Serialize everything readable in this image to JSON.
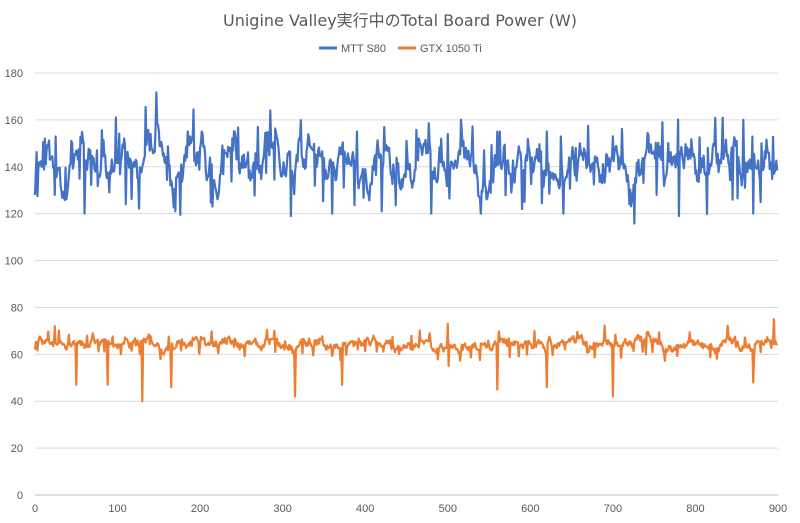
{
  "chart_data": {
    "type": "line",
    "title": "Unigine Valley実行中のTotal Board Power (W)",
    "xlabel": "",
    "ylabel": "",
    "xlim": [
      0,
      900
    ],
    "ylim": [
      0,
      180
    ],
    "x_ticks": [
      "0",
      "100",
      "200",
      "300",
      "400",
      "500",
      "600",
      "700",
      "800",
      "900"
    ],
    "y_ticks": [
      "0",
      "20",
      "40",
      "60",
      "80",
      "100",
      "120",
      "140",
      "160",
      "180"
    ],
    "grid": true,
    "legend_position": "top",
    "x_step": 1,
    "series": [
      {
        "name": "MTT S80",
        "color": "#4472c4",
        "generation": {
          "count": 900,
          "base": 141,
          "amplitude": 8,
          "noise": 6,
          "seed": 11
        },
        "anchors": [
          [
            0,
            128
          ],
          [
            12,
            152
          ],
          [
            24,
            128
          ],
          [
            45,
            150
          ],
          [
            60,
            120
          ],
          [
            75,
            147
          ],
          [
            98,
            161
          ],
          [
            110,
            124
          ],
          [
            140,
            154
          ],
          [
            170,
            121
          ],
          [
            190,
            152
          ],
          [
            215,
            123
          ],
          [
            240,
            147
          ],
          [
            270,
            157
          ],
          [
            285,
            164
          ],
          [
            310,
            119
          ],
          [
            330,
            149
          ],
          [
            360,
            120
          ],
          [
            390,
            155
          ],
          [
            420,
            121
          ],
          [
            450,
            151
          ],
          [
            480,
            120
          ],
          [
            500,
            154
          ],
          [
            540,
            120
          ],
          [
            560,
            155
          ],
          [
            590,
            122
          ],
          [
            620,
            155
          ],
          [
            640,
            120
          ],
          [
            660,
            150
          ],
          [
            700,
            153
          ],
          [
            720,
            124
          ],
          [
            760,
            159
          ],
          [
            780,
            119
          ],
          [
            815,
            148
          ],
          [
            845,
            126
          ],
          [
            858,
            160
          ],
          [
            870,
            120
          ],
          [
            880,
            150
          ],
          [
            895,
            137
          ]
        ]
      },
      {
        "name": "GTX 1050 Ti",
        "color": "#ed7d31",
        "generation": {
          "count": 900,
          "base": 64.5,
          "amplitude": 1.5,
          "noise": 2,
          "seed": 29
        },
        "anchors": [
          [
            0,
            62
          ],
          [
            24,
            72
          ],
          [
            50,
            47
          ],
          [
            70,
            69
          ],
          [
            88,
            47
          ],
          [
            130,
            40
          ],
          [
            165,
            46
          ],
          [
            200,
            64
          ],
          [
            230,
            67
          ],
          [
            290,
            70
          ],
          [
            315,
            42
          ],
          [
            372,
            47
          ],
          [
            500,
            73
          ],
          [
            560,
            45
          ],
          [
            620,
            46
          ],
          [
            700,
            42
          ],
          [
            740,
            60
          ],
          [
            870,
            48
          ],
          [
            895,
            75
          ]
        ]
      }
    ]
  }
}
